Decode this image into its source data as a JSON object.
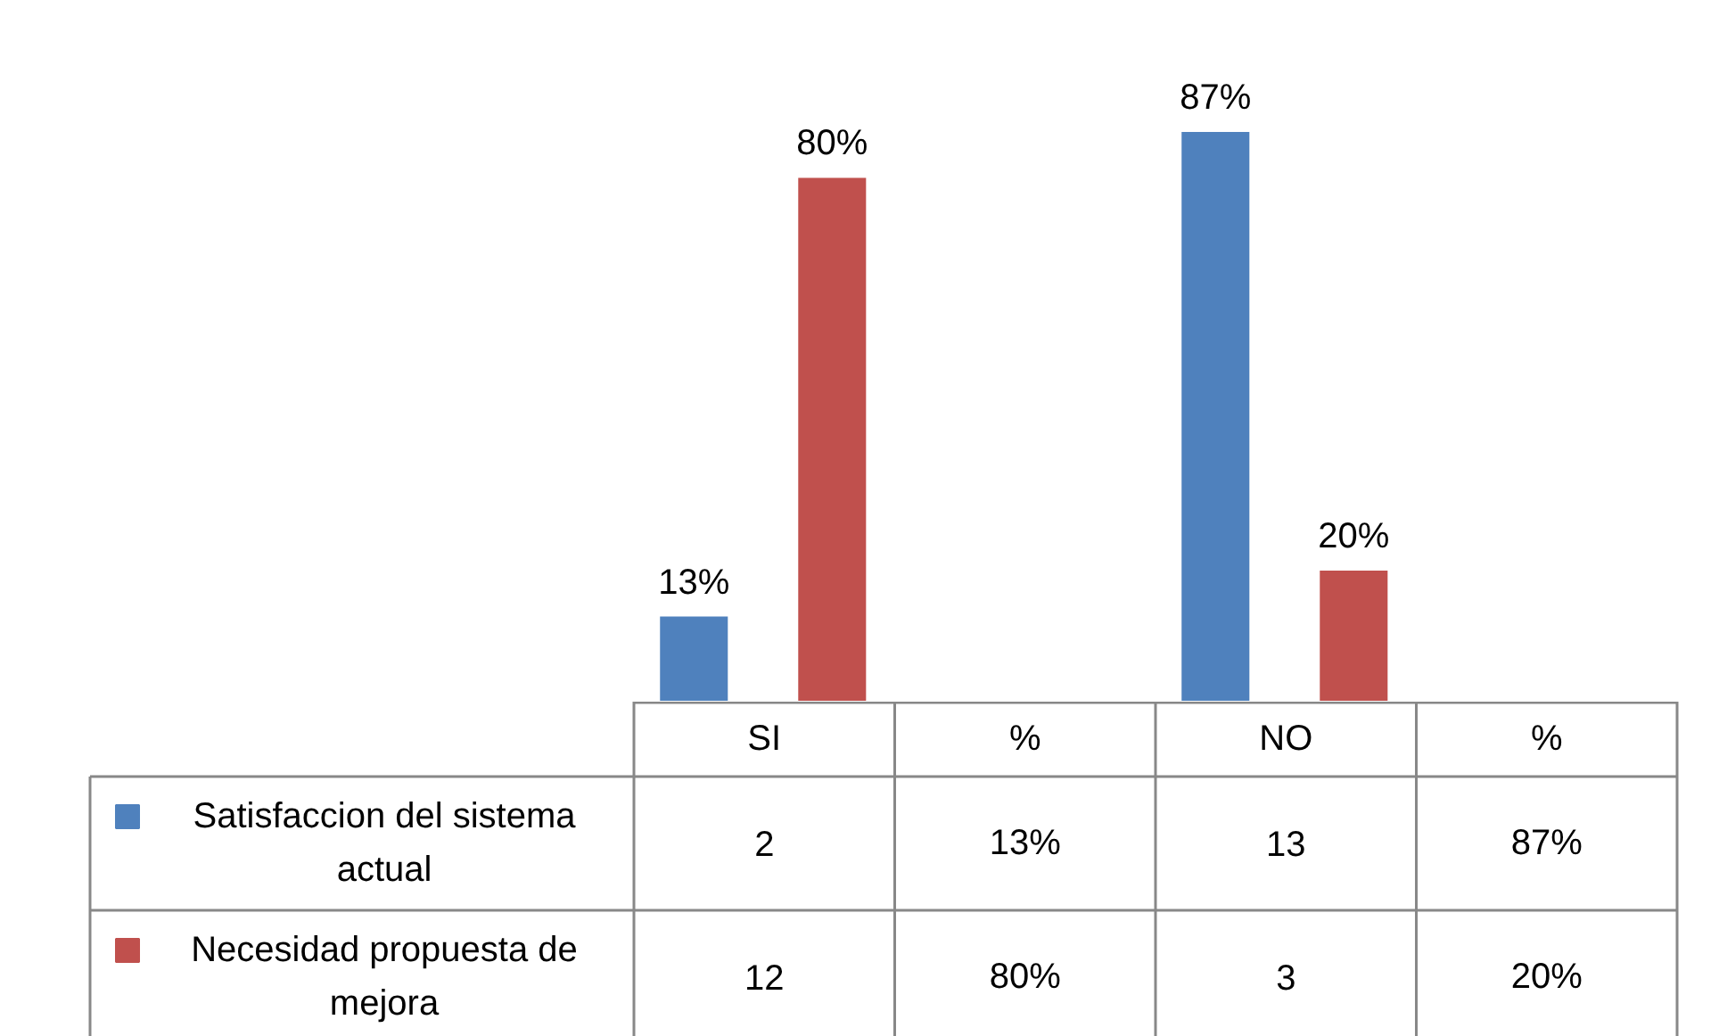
{
  "chart_data": {
    "type": "bar",
    "categories": [
      "SI",
      "%",
      "NO",
      "%"
    ],
    "series": [
      {
        "name": "Satisfaccion del sistema actual",
        "color": "#4f81bd",
        "values": [
          13,
          null,
          87,
          null
        ],
        "value_labels": [
          "13%",
          null,
          "87%",
          null
        ]
      },
      {
        "name": "Necesidad propuesta de mejora",
        "color": "#c0504d",
        "values": [
          80,
          null,
          20,
          null
        ],
        "value_labels": [
          "80%",
          null,
          "20%",
          null
        ]
      }
    ],
    "annotations": [
      "2",
      "13%",
      "13",
      "87%",
      "12",
      "80%",
      "3",
      "20%"
    ],
    "legend": "bottom left",
    "grid": false
  }
}
